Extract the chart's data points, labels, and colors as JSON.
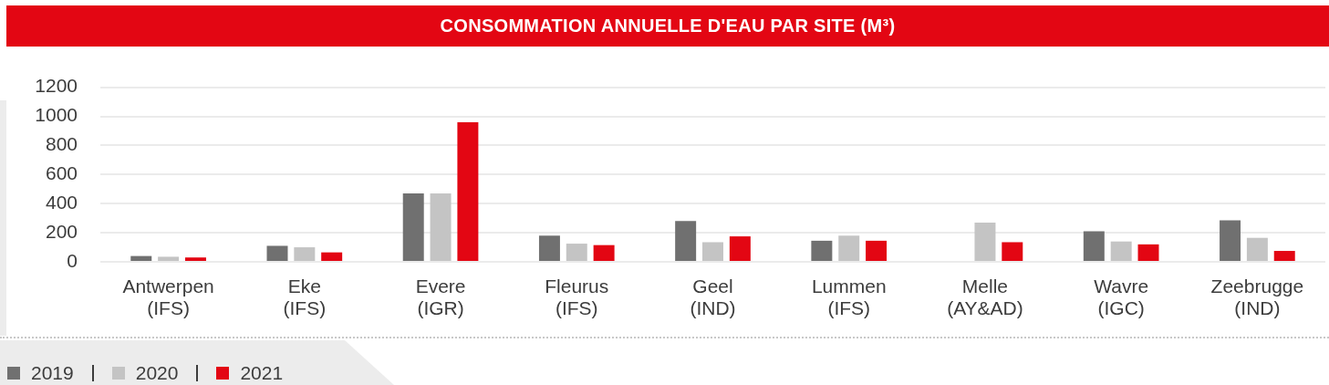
{
  "chart_data": {
    "type": "bar",
    "title": "CONSOMMATION ANNUELLE D'EAU PAR SITE (M³)",
    "categories": [
      "Antwerpen (IFS)",
      "Eke (IFS)",
      "Evere (IGR)",
      "Fleurus (IFS)",
      "Geel (IND)",
      "Lummen (IFS)",
      "Melle (AY&AD)",
      "Wavre (IGC)",
      "Zeebrugge (IND)"
    ],
    "series": [
      {
        "name": "2019",
        "color": "#707070",
        "values": [
          40,
          110,
          470,
          180,
          280,
          145,
          null,
          210,
          285
        ]
      },
      {
        "name": "2020",
        "color": "#c4c4c4",
        "values": [
          35,
          100,
          470,
          125,
          135,
          180,
          270,
          140,
          165
        ]
      },
      {
        "name": "2021",
        "color": "#e30613",
        "values": [
          30,
          65,
          960,
          115,
          175,
          145,
          135,
          120,
          75
        ]
      }
    ],
    "ylim": [
      0,
      1200
    ],
    "yticks": [
      0,
      200,
      400,
      600,
      800,
      1000,
      1200
    ],
    "grid": "y",
    "legend": "bottom left"
  }
}
